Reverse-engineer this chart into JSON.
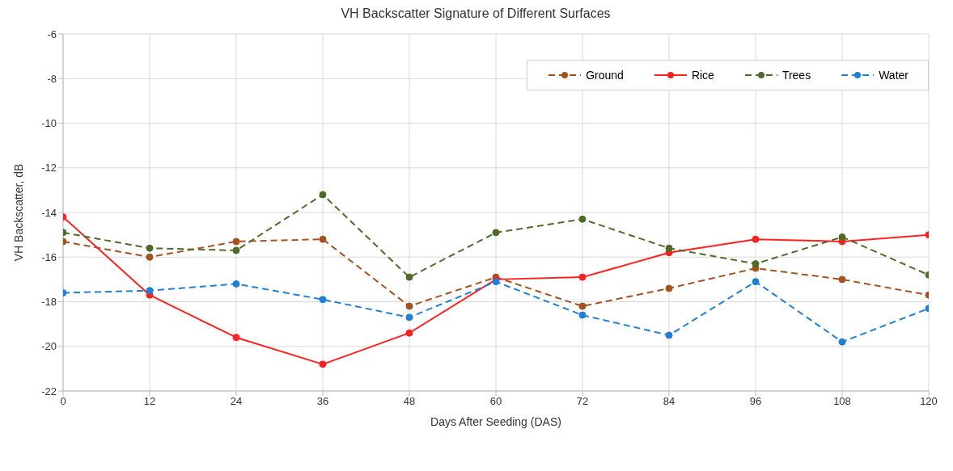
{
  "chart_data": {
    "type": "line",
    "title": "VH Backscatter Signature of Different Surfaces",
    "xlabel": "Days After Seeding (DAS)",
    "ylabel": "VH Backscatter, dB",
    "x": [
      0,
      12,
      24,
      36,
      48,
      60,
      72,
      84,
      96,
      108,
      120
    ],
    "series": [
      {
        "name": "Ground",
        "color": "#a5521f",
        "line_style": "dashed",
        "values": [
          -15.3,
          -16.0,
          -15.3,
          -15.2,
          -18.2,
          -16.9,
          -18.2,
          -17.4,
          -16.5,
          -17.0,
          -17.7
        ]
      },
      {
        "name": "Rice",
        "color": "#ff2020",
        "line_style": "solid",
        "values": [
          -14.2,
          -17.7,
          -19.6,
          -20.8,
          -19.4,
          -17.0,
          -16.9,
          -15.8,
          -15.2,
          -15.3,
          -15.0
        ]
      },
      {
        "name": "Trees",
        "color": "#4e6b2a",
        "line_style": "dashed",
        "values": [
          -14.9,
          -15.6,
          -15.7,
          -13.2,
          -16.9,
          -14.9,
          -14.3,
          -15.6,
          -16.3,
          -15.1,
          -16.8
        ]
      },
      {
        "name": "Water",
        "color": "#1f7fd4",
        "line_style": "dashed",
        "values": [
          -17.6,
          -17.5,
          -17.2,
          -17.9,
          -18.7,
          -17.1,
          -18.6,
          -19.5,
          -17.1,
          -19.8,
          -18.3
        ]
      }
    ],
    "xlim": [
      0,
      120
    ],
    "xticks": [
      0,
      12,
      24,
      36,
      48,
      60,
      72,
      84,
      96,
      108,
      120
    ],
    "ylim": [
      -22,
      -6
    ],
    "yticks": [
      -22,
      -20,
      -18,
      -16,
      -14,
      -12,
      -10,
      -8,
      -6
    ],
    "grid": true,
    "legend": "top right",
    "marker": "circle"
  }
}
